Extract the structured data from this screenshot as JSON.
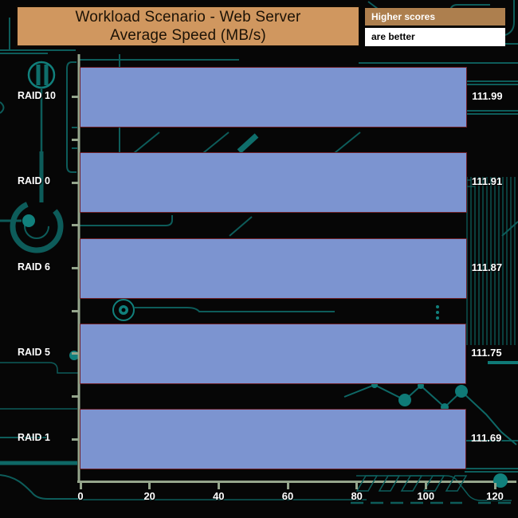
{
  "legend": {
    "line1": "Higher scores",
    "line2": "are better"
  },
  "chart_data": {
    "type": "bar",
    "orientation": "horizontal",
    "title": "Workload Scenario - Web Server Average Speed (MB/s)",
    "title_line1": "Workload Scenario - Web Server",
    "title_line2": "Average Speed (MB/s)",
    "categories": [
      "RAID 10",
      "RAID 0",
      "RAID 6",
      "RAID 5",
      "RAID 1"
    ],
    "values": [
      111.99,
      111.91,
      111.87,
      111.75,
      111.69
    ],
    "value_labels": [
      "111.99",
      "111.91",
      "111.87",
      "111.75",
      "111.69"
    ],
    "x_ticks": [
      0,
      20,
      40,
      60,
      80,
      100,
      120
    ],
    "xlim": [
      0,
      120
    ],
    "xlabel": "",
    "ylabel": "",
    "grid": false,
    "legend_position": "top-right",
    "higher_is_better": true
  },
  "colors": {
    "background": "#060606",
    "bar_fill": "#7c94d0",
    "bar_border": "#6e2028",
    "axis": "#95a58c",
    "title_bg": "#d0975f",
    "title_border": "#0d0903",
    "legend_header_bg": "#ad7f4e",
    "legend_body_bg": "#ffffff",
    "trace": "#0d5c5a",
    "trace_bright": "#11807c",
    "label_text": "#ffffff"
  }
}
